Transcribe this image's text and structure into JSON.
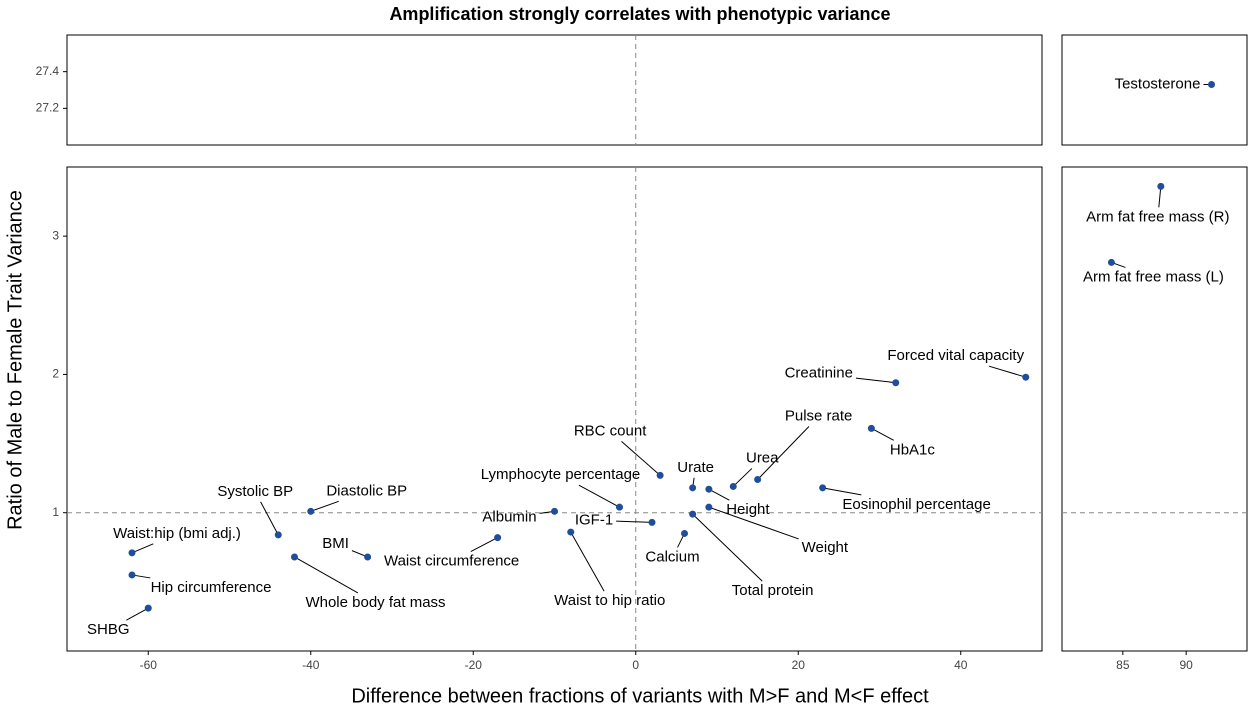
{
  "chart_data": {
    "type": "scatter",
    "title": "Amplification strongly correlates with phenotypic variance",
    "x_label": "Difference between fractions of variants with M>F and M<F effect",
    "y_label": "Ratio of Male to Female Trait Variance",
    "color": "#1f4e9c",
    "xlim": [
      -70,
      50
    ],
    "xticks": [
      -60,
      -40,
      -20,
      0,
      20,
      40
    ],
    "ylim": [
      0,
      3.5
    ],
    "yticks": [
      1,
      2,
      3
    ],
    "x2lim": [
      80.2,
      94.8
    ],
    "x2ticks": [
      85,
      90
    ],
    "y2lim": [
      27.0,
      27.6
    ],
    "y2ticks": [
      27.2,
      27.4
    ],
    "hline": 1,
    "vline": 0,
    "labels": [
      "Testosterone",
      "Arm fat free mass (R)",
      "Arm fat free mass (L)",
      "Forced vital capacity",
      "Creatinine",
      "Pulse rate",
      "HbA1c",
      "Eosinophil percentage",
      "Urea",
      "Urate",
      "Height",
      "Weight",
      "Total protein",
      "RBC count",
      "Calcium",
      "IGF-1",
      "Lymphocyte percentage",
      "Albumin",
      "Waist to hip ratio",
      "Waist circumference",
      "BMI",
      "Diastolic BP",
      "Systolic BP",
      "Whole body fat mass",
      "Waist:hip (bmi adj.)",
      "Hip circumference",
      "SHBG"
    ],
    "x": [
      92,
      88,
      84.1,
      48,
      32,
      15,
      29,
      23,
      12,
      7,
      9,
      9,
      7,
      3,
      6,
      2,
      -2,
      -10,
      -8,
      -17,
      -33,
      -40,
      -44,
      -42,
      -62,
      -62,
      -60
    ],
    "y": [
      27.33,
      3.36,
      2.81,
      1.98,
      1.94,
      1.24,
      1.61,
      1.18,
      1.19,
      1.18,
      1.17,
      1.04,
      0.99,
      1.27,
      0.85,
      0.93,
      1.04,
      1.01,
      0.86,
      0.82,
      0.68,
      1.01,
      0.84,
      0.68,
      0.71,
      0.55,
      0.31
    ]
  }
}
